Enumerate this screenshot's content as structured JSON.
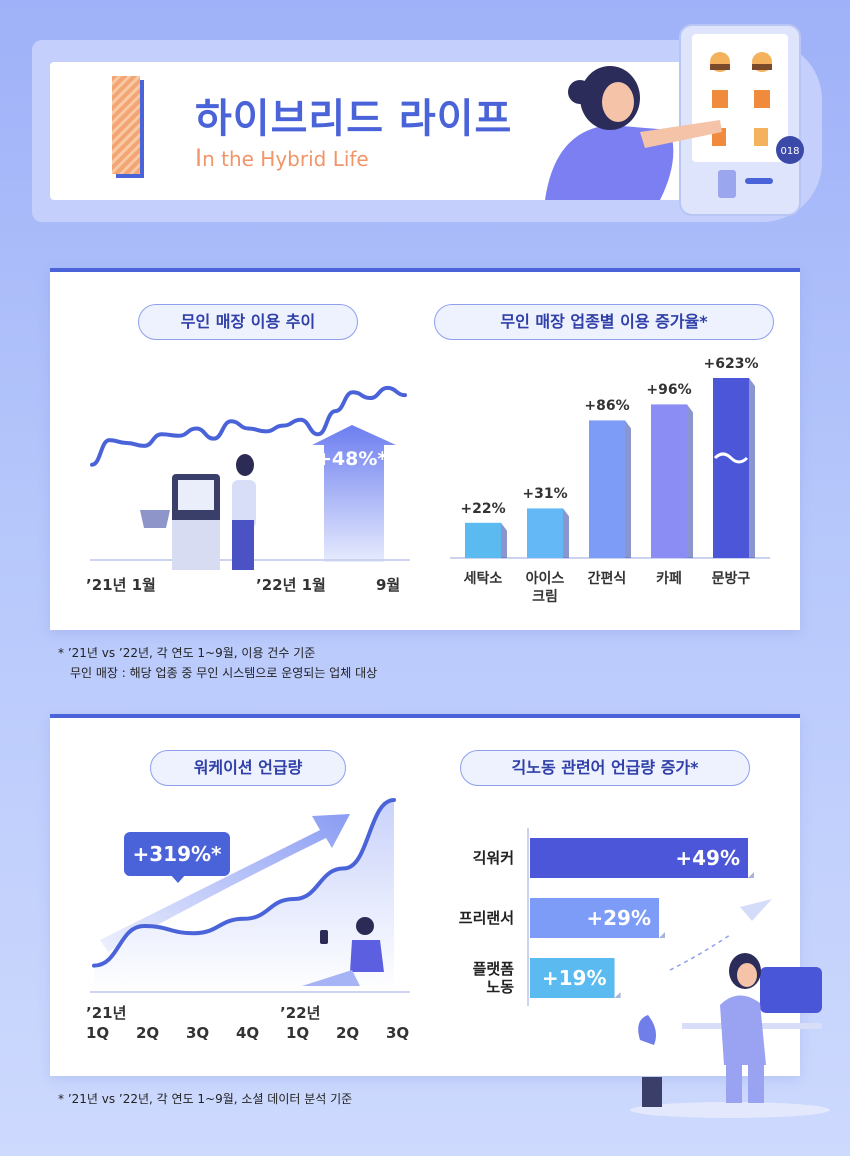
{
  "header": {
    "title": "하이브리드 라이프",
    "subtitle_first": "I",
    "subtitle_rest": "n the Hybrid Life",
    "kiosk_tag": "018"
  },
  "colors": {
    "accent": "#4a63d8",
    "orange": "#f0956a",
    "bar_light": "#5bbaf0",
    "bar_mid": "#7d9cf7",
    "bar_purple": "#8b8df5",
    "bar_dark": "#4c56d8"
  },
  "panel1": {
    "left_pill": "무인 매장 이용 추이",
    "right_pill": "무인 매장 업종별 이용 증가율*",
    "growth_label": "+48%*",
    "x_labels": [
      "’21년 1월",
      "’22년 1월",
      "9월"
    ]
  },
  "note1": {
    "line1": "* ’21년 vs ’22년, 각 연도 1~9월, 이용 건수 기준",
    "line2": "무인 매장 : 해당 업종 중 무인 시스템으로 운영되는 업체 대상"
  },
  "panel2": {
    "left_pill": "워케이션 언급량",
    "right_pill": "긱노동 관련어 언급량 증가*",
    "growth_label": "+319%*",
    "year_labels": [
      "’21년",
      "’22년"
    ],
    "quarter_labels": [
      "1Q",
      "2Q",
      "3Q",
      "4Q",
      "1Q",
      "2Q",
      "3Q"
    ]
  },
  "note2": {
    "line1": "* ’21년 vs ’22년, 각 연도 1~9월, 소셜 데이터 분석 기준"
  },
  "chart_data": [
    {
      "type": "line",
      "title": "무인 매장 이용 추이",
      "x_ticks": [
        "’21년 1월",
        "’22년 1월",
        "9월"
      ],
      "annotation": "+48%*",
      "series": [
        {
          "values": [
            0.45,
            0.62,
            0.6,
            0.58,
            0.66,
            0.65,
            0.7,
            0.63,
            0.75,
            0.7,
            0.68,
            0.72,
            0.76,
            0.66,
            0.82,
            0.95,
            0.91,
            0.98,
            0.93
          ]
        }
      ]
    },
    {
      "type": "bar",
      "title": "무인 매장 업종별 이용 증가율*",
      "categories": [
        "세탁소",
        "아이스\n크림",
        "간편식",
        "카페",
        "문방구"
      ],
      "values": [
        22,
        31,
        86,
        96,
        623
      ],
      "value_labels": [
        "+22%",
        "+31%",
        "+86%",
        "+96%",
        "+623%"
      ],
      "axis_break": true
    },
    {
      "type": "area",
      "title": "워케이션 언급량",
      "x_ticks": [
        "1Q",
        "2Q",
        "3Q",
        "4Q",
        "1Q",
        "2Q",
        "3Q"
      ],
      "annotation": "+319%*",
      "series": [
        {
          "values": [
            0.08,
            0.3,
            0.26,
            0.34,
            0.45,
            0.62,
            1.0
          ]
        }
      ]
    },
    {
      "type": "bar",
      "orientation": "horizontal",
      "title": "긱노동 관련어 언급량 증가*",
      "categories": [
        "긱워커",
        "프리랜서",
        "플랫폼\n노동"
      ],
      "values": [
        49,
        29,
        19
      ],
      "value_labels": [
        "+49%",
        "+29%",
        "+19%"
      ]
    }
  ]
}
